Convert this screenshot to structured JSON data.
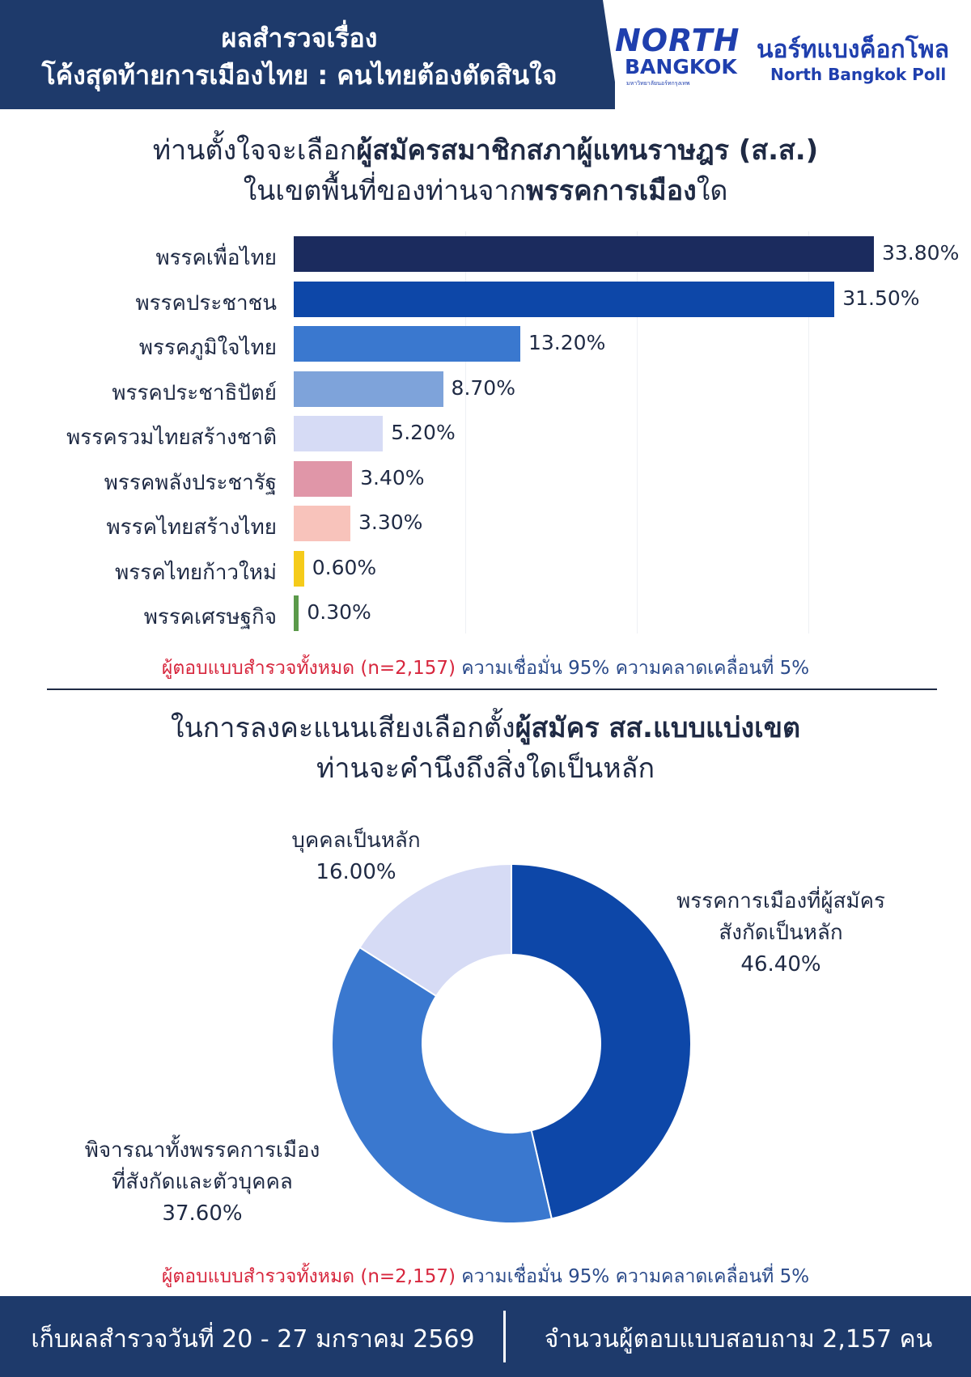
{
  "header": {
    "title_line1": "ผลสำรวจเรื่อง",
    "title_line2": "โค้งสุดท้ายการเมืองไทย : คนไทยต้องตัดสินใจ",
    "logo_line1": "NORTH",
    "logo_line2": "BANGKOK",
    "logo_sub": "มหาวิทยาลัยนอร์ทกรุงเทพ",
    "brand_th": "นอร์ทแบงค็อกโพล",
    "brand_en": "North Bangkok Poll"
  },
  "q1": {
    "line1_pre": "ท่านตั้งใจจะเลือก",
    "line1_bold": "ผู้สมัครสมาชิกสภาผู้แทนราษฎร (ส.ส.)",
    "line2_pre": "ในเขตพื้นที่ของท่านจาก",
    "line2_bold": "พรรคการเมือง",
    "line2_post": "ใด"
  },
  "note1": {
    "red": "ผู้ตอบแบบสำรวจทั้งหมด (n=2,157)",
    "blue": " ความเชื่อมั่น 95% ความคลาดเคลื่อนที่ 5%"
  },
  "q2": {
    "line1_pre": "ในการลงคะแนนเสียงเลือกตั้ง",
    "line1_bold": "ผู้สมัคร สส.แบบแบ่งเขต",
    "line2": "ท่านจะคำนึงถึงสิ่งใดเป็นหลัก"
  },
  "note2": {
    "red": "ผู้ตอบแบบสำรวจทั้งหมด (n=2,157)",
    "blue": " ความเชื่อมั่น 95% ความคลาดเคลื่อนที่ 5%"
  },
  "footer": {
    "left": "เก็บผลสำรวจวันที่ 20 - 27 มกราคม 2569",
    "right": "จำนวนผู้ตอบแบบสอบถาม 2,157 คน"
  },
  "chart_data": [
    {
      "type": "bar",
      "orientation": "horizontal",
      "categories": [
        "พรรคเพื่อไทย",
        "พรรคประชาชน",
        "พรรคภูมิใจไทย",
        "พรรคประชาธิปัตย์",
        "พรรครวมไทยสร้างชาติ",
        "พรรคพลังประชารัฐ",
        "พรรคไทยสร้างไทย",
        "พรรคไทยก้าวใหม่",
        "พรรคเศรษฐกิจ"
      ],
      "values": [
        33.8,
        31.5,
        13.2,
        8.7,
        5.2,
        3.4,
        3.3,
        0.6,
        0.3
      ],
      "value_labels": [
        "33.80%",
        "31.50%",
        "13.20%",
        "8.70%",
        "5.20%",
        "3.40%",
        "3.30%",
        "0.60%",
        "0.30%"
      ],
      "colors": [
        "#1b2b5e",
        "#0d47a8",
        "#3a78cf",
        "#7ea3da",
        "#d6dbf5",
        "#e096a8",
        "#f8c3bb",
        "#f5cb1a",
        "#5b9a4a"
      ],
      "xlim": [
        0,
        50
      ]
    },
    {
      "type": "pie",
      "donut": true,
      "categories": [
        "พรรคการเมืองที่ผู้สมัครสังกัดเป็นหลัก",
        "พิจารณาทั้งพรรคการเมืองที่สังกัดและตัวบุคคล",
        "บุคคลเป็นหลัก"
      ],
      "label_lines": [
        [
          "พรรคการเมืองที่ผู้สมัคร",
          "สังกัดเป็นหลัก"
        ],
        [
          "พิจารณาทั้งพรรคการเมือง",
          "ที่สังกัดและตัวบุคคล"
        ],
        [
          "บุคคลเป็นหลัก"
        ]
      ],
      "values": [
        46.4,
        37.6,
        16.0
      ],
      "value_labels": [
        "46.40%",
        "37.60%",
        "16.00%"
      ],
      "colors": [
        "#0d47a8",
        "#3a78cf",
        "#d6dbf5"
      ]
    }
  ]
}
